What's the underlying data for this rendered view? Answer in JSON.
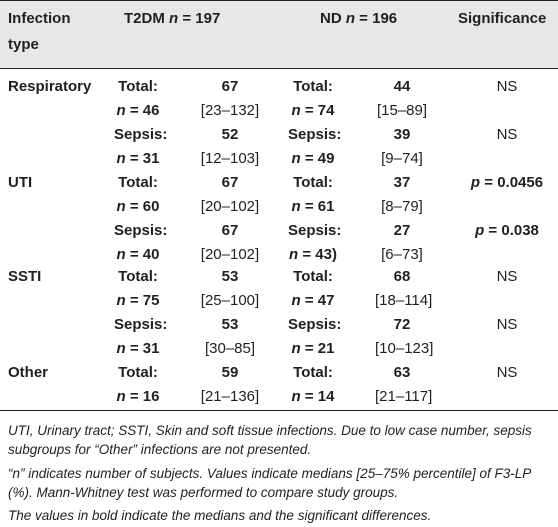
{
  "header": {
    "col1": "Infection type",
    "col1_line1": "Infection",
    "col1_line2": "type",
    "col2_prefix": "T2DM ",
    "col2_n": "n",
    "col2_eq": " = 197",
    "col3_prefix": "ND ",
    "col3_n": "n",
    "col3_eq": " = 196",
    "col4": "Significance"
  },
  "rows": [
    {
      "infection": "Respiratory",
      "t2_label": "Total:",
      "t2_n": "n = 46",
      "t2_median": "67",
      "t2_range": "[23–132]",
      "nd_label": "Total:",
      "nd_n": "n = 74",
      "nd_median": "44",
      "nd_range": "[15–89]",
      "significance": "NS"
    },
    {
      "infection": "",
      "t2_label": "Sepsis:",
      "t2_n": "n = 31",
      "t2_median": "52",
      "t2_range": "[12–103]",
      "nd_label": "Sepsis:",
      "nd_n": "n = 49",
      "nd_median": "39",
      "nd_range": "[9–74]",
      "significance": "NS"
    },
    {
      "infection": "UTI",
      "t2_label": "Total:",
      "t2_n": "n = 60",
      "t2_median": "67",
      "t2_range": "[20–102]",
      "nd_label": "Total:",
      "nd_n": "n = 61",
      "nd_median": "37",
      "nd_range": "[8–79]",
      "significance": "p = 0.0456"
    },
    {
      "infection": "",
      "t2_label": "Sepsis:",
      "t2_n": "n = 40",
      "t2_median": "67",
      "t2_range": "[20–102]",
      "nd_label": "Sepsis:",
      "nd_n": "n = 43)",
      "nd_median": "27",
      "nd_range": "[6–73]",
      "significance": "p = 0.038"
    },
    {
      "infection": "SSTI",
      "t2_label": "Total:",
      "t2_n": "n = 75",
      "t2_median": "53",
      "t2_range": "[25–100]",
      "nd_label": "Total:",
      "nd_n": "n = 47",
      "nd_median": "68",
      "nd_range": "[18–114]",
      "significance": "NS"
    },
    {
      "infection": "",
      "t2_label": "Sepsis:",
      "t2_n": "n = 31",
      "t2_median": "53",
      "t2_range": "[30–85]",
      "nd_label": "Sepsis:",
      "nd_n": "n = 21",
      "nd_median": "72",
      "nd_range": "[10–123]",
      "significance": "NS"
    },
    {
      "infection": "Other",
      "t2_label": "Total:",
      "t2_n": "n = 16",
      "t2_median": "59",
      "t2_range": "[21–136]",
      "nd_label": "Total:",
      "nd_n": "n = 14",
      "nd_median": "63",
      "nd_range": "[21–117]",
      "significance": "NS"
    }
  ],
  "notes": [
    "UTI, Urinary tract; SSTI, Skin and soft tissue infections. Due to low case number, sepsis",
    "subgroups for “Other” infections are not presented.",
    "“n” indicates number of subjects. Values indicate medians [25–75% percentile] of F3-LP",
    "(%). Mann-Whitney test was performed to compare study groups.",
    "The values in bold indicate the medians and the significant differences."
  ]
}
